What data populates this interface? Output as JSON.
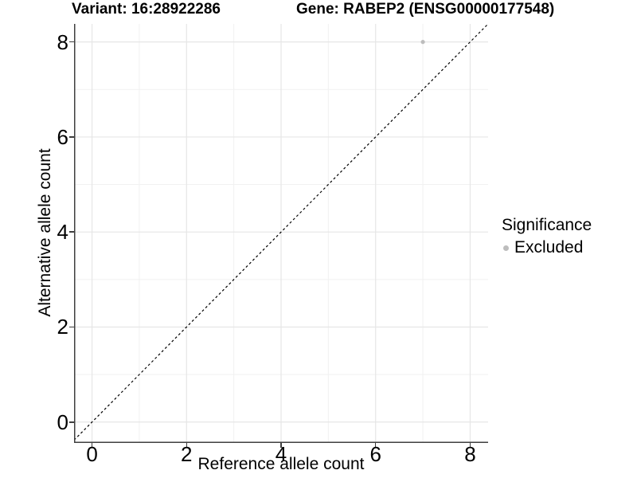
{
  "header": {
    "variant_title": "Variant: 16:28922286",
    "gene_title": "Gene: RABEP2 (ENSG00000177548)"
  },
  "axes": {
    "x": {
      "label": "Reference allele count",
      "tick_values": [
        0,
        2,
        4,
        6,
        8
      ],
      "tick_labels": [
        "0",
        "2",
        "4",
        "6",
        "8"
      ]
    },
    "y": {
      "label": "Alternative allele count",
      "tick_values": [
        0,
        2,
        4,
        6,
        8
      ],
      "tick_labels": [
        "0",
        "2",
        "4",
        "6",
        "8"
      ]
    }
  },
  "legend": {
    "title": "Significance",
    "items": [
      {
        "label": "Excluded",
        "color": "#bdbdbd"
      }
    ]
  },
  "chart_data": {
    "type": "scatter",
    "title": "Variant: 16:28922286 | Gene: RABEP2 (ENSG00000177548)",
    "xlabel": "Reference allele count",
    "ylabel": "Alternative allele count",
    "xlim": [
      -0.38,
      8.38
    ],
    "ylim": [
      -0.44,
      8.38
    ],
    "grid": "on",
    "legend_position": "right",
    "x_major_gridlines": [
      0,
      2,
      4,
      6,
      8
    ],
    "x_minor_gridlines": [
      1,
      3,
      5,
      7
    ],
    "y_major_gridlines": [
      0,
      2,
      4,
      6,
      8
    ],
    "y_minor_gridlines": [
      1,
      3,
      5,
      7
    ],
    "reference_line": {
      "equation": "y = x",
      "style": "dashed",
      "color": "#000000"
    },
    "series": [
      {
        "name": "Excluded",
        "color": "#bdbdbd",
        "points": [
          {
            "x": 7,
            "y": 8
          }
        ]
      }
    ]
  },
  "colors": {
    "background": "#ffffff",
    "grid_major": "#e6e6e6",
    "grid_minor": "#f1f1f1",
    "axis_line": "#3f3f3f",
    "point": "#bdbdbd",
    "text": "#000000"
  }
}
